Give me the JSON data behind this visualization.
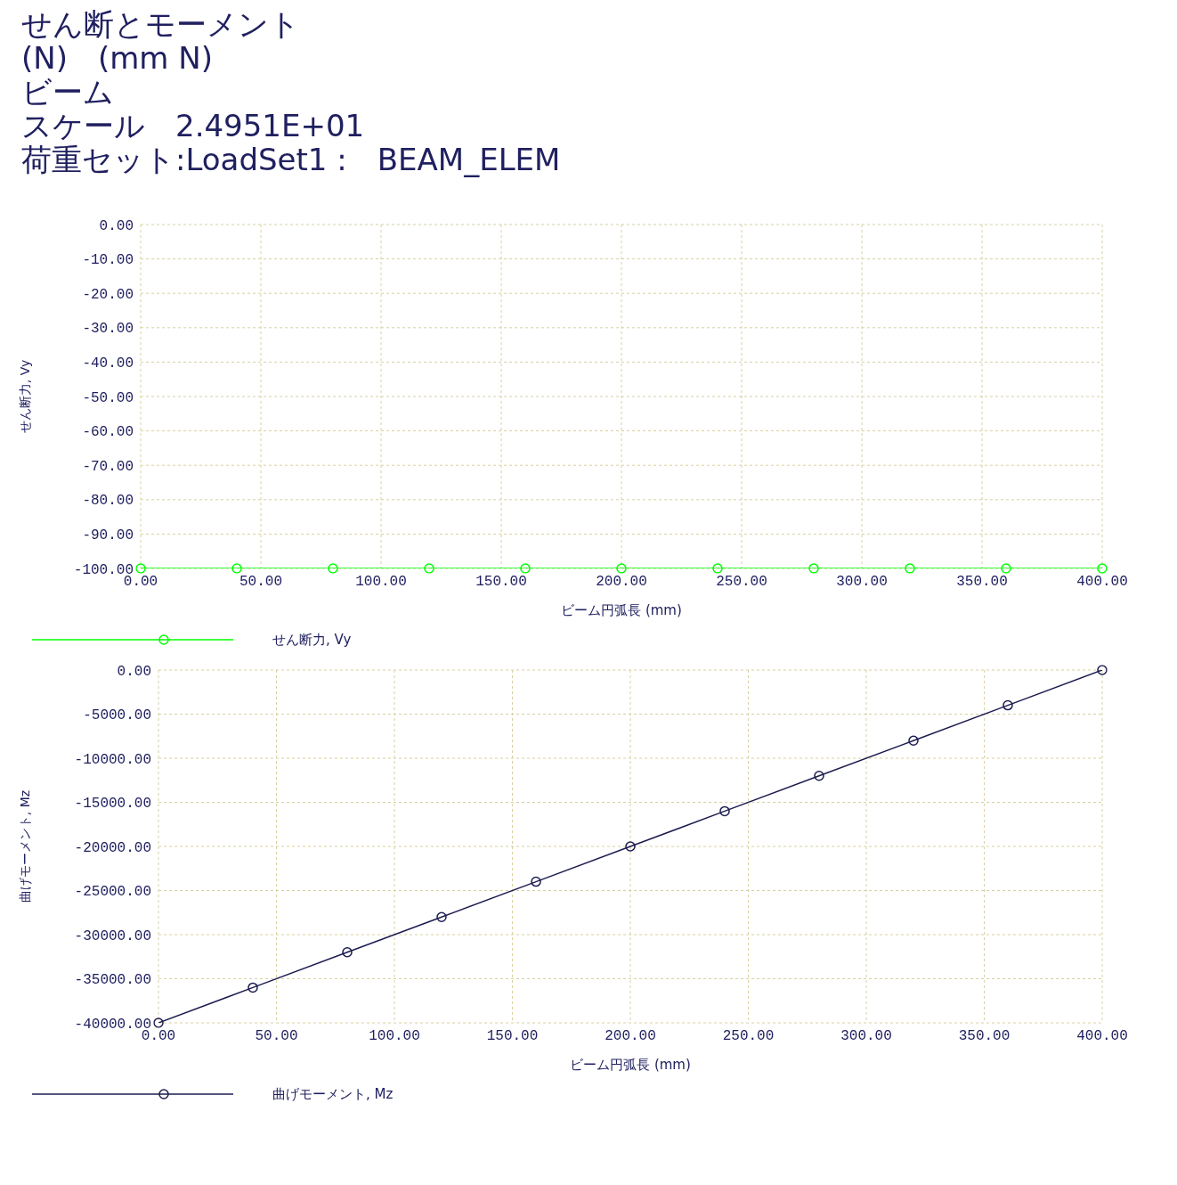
{
  "chart_data": [
    {
      "type": "line",
      "title": "せん断とモーメント",
      "annotations": [
        "(N)　(mm N)",
        "ビーム",
        "スケール　2.4951E+01",
        "荷重セット:LoadSet1 :　BEAM_ELEM"
      ],
      "xlabel": "ビーム円弧長 (mm)",
      "ylabel": "せん断力, Vy",
      "x": [
        0,
        40,
        80,
        120,
        160,
        200,
        240,
        280,
        320,
        360,
        400
      ],
      "series": [
        {
          "name": "せん断力, Vy",
          "color": "#00ff00",
          "values": [
            -100,
            -100,
            -100,
            -100,
            -100,
            -100,
            -100,
            -100,
            -100,
            -100,
            -100
          ]
        }
      ],
      "xlim": [
        0,
        400
      ],
      "xticks": [
        {
          "value": 0,
          "label": "0.00"
        },
        {
          "value": 50,
          "label": "50.00"
        },
        {
          "value": 100,
          "label": "100.00"
        },
        {
          "value": 150,
          "label": "150.00"
        },
        {
          "value": 200,
          "label": "200.00"
        },
        {
          "value": 250,
          "label": "250.00"
        },
        {
          "value": 300,
          "label": "300.00"
        },
        {
          "value": 350,
          "label": "350.00"
        },
        {
          "value": 400,
          "label": "400.00"
        }
      ],
      "ylim": [
        -100,
        0
      ],
      "yticks": [
        {
          "value": 0,
          "label": "0.00"
        },
        {
          "value": -10,
          "label": "-10.00"
        },
        {
          "value": -20,
          "label": "-20.00"
        },
        {
          "value": -30,
          "label": "-30.00"
        },
        {
          "value": -40,
          "label": "-40.00"
        },
        {
          "value": -50,
          "label": "-50.00"
        },
        {
          "value": -60,
          "label": "-60.00"
        },
        {
          "value": -70,
          "label": "-70.00"
        },
        {
          "value": -80,
          "label": "-80.00"
        },
        {
          "value": -90,
          "label": "-90.00"
        },
        {
          "value": -100,
          "label": "-100.00"
        }
      ],
      "grid": true,
      "legend": "bottom",
      "marker": "circle",
      "line_style": "solid"
    },
    {
      "type": "line",
      "xlabel": "ビーム円弧長 (mm)",
      "ylabel": "曲げモーメント, Mz",
      "x": [
        0,
        40,
        80,
        120,
        160,
        200,
        240,
        280,
        320,
        360,
        400
      ],
      "series": [
        {
          "name": "曲げモーメント, Mz",
          "color": "#1c1c50",
          "values": [
            -40000,
            -36000,
            -32000,
            -28000,
            -24000,
            -20000,
            -16000,
            -12000,
            -8000,
            -4000,
            0
          ]
        }
      ],
      "xlim": [
        0,
        400
      ],
      "xticks": [
        {
          "value": 0,
          "label": "0.00"
        },
        {
          "value": 50,
          "label": "50.00"
        },
        {
          "value": 100,
          "label": "100.00"
        },
        {
          "value": 150,
          "label": "150.00"
        },
        {
          "value": 200,
          "label": "200.00"
        },
        {
          "value": 250,
          "label": "250.00"
        },
        {
          "value": 300,
          "label": "300.00"
        },
        {
          "value": 350,
          "label": "350.00"
        },
        {
          "value": 400,
          "label": "400.00"
        }
      ],
      "ylim": [
        -40000,
        0
      ],
      "yticks": [
        {
          "value": 0,
          "label": "0.00"
        },
        {
          "value": -5000,
          "label": "-5000.00"
        },
        {
          "value": -10000,
          "label": "-10000.00"
        },
        {
          "value": -15000,
          "label": "-15000.00"
        },
        {
          "value": -20000,
          "label": "-20000.00"
        },
        {
          "value": -25000,
          "label": "-25000.00"
        },
        {
          "value": -30000,
          "label": "-30000.00"
        },
        {
          "value": -35000,
          "label": "-35000.00"
        },
        {
          "value": -40000,
          "label": "-40000.00"
        }
      ],
      "grid": true,
      "legend": "bottom",
      "marker": "circle",
      "line_style": "solid"
    }
  ]
}
